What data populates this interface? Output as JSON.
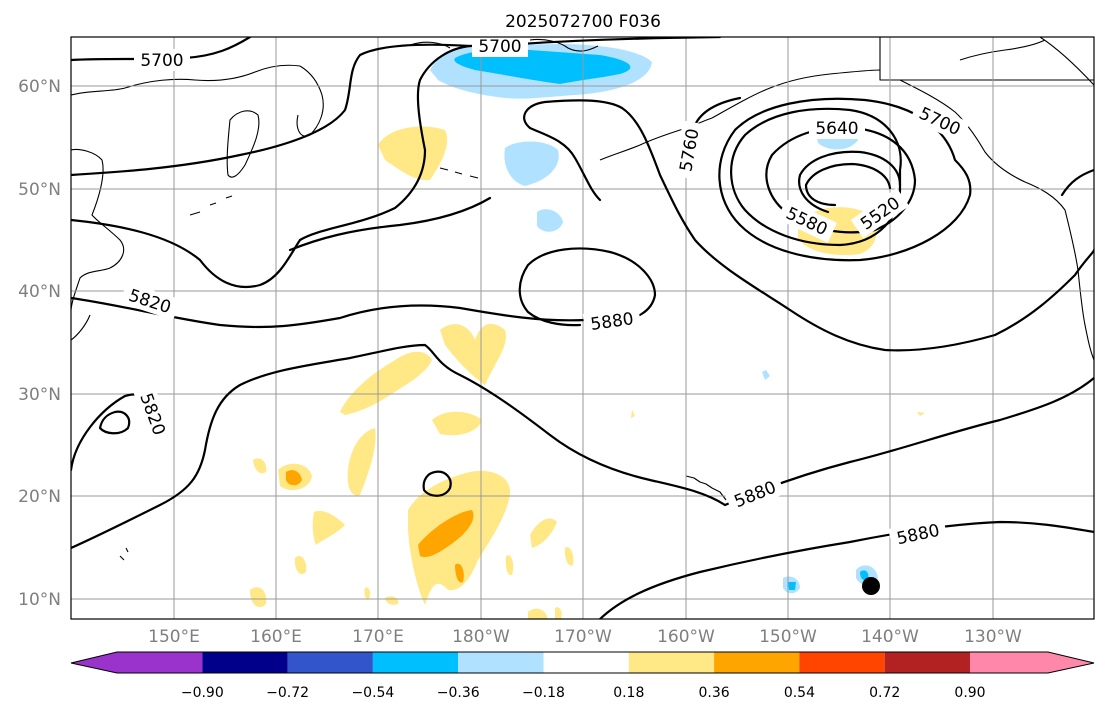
{
  "title": "2025072700 F036",
  "lat_labels": [
    "60°N",
    "50°N",
    "40°N",
    "30°N",
    "20°N",
    "10°N"
  ],
  "lon_labels": [
    "150°E",
    "160°E",
    "170°E",
    "180°W",
    "170°W",
    "160°W",
    "150°W",
    "140°W",
    "130°W"
  ],
  "contour_labels": [
    "5700",
    "5700",
    "5700",
    "5640",
    "5760",
    "5580",
    "5520",
    "5820",
    "5820",
    "5880",
    "5880",
    "5880"
  ],
  "colorbar": {
    "ticks": [
      "−0.90",
      "−0.72",
      "−0.54",
      "−0.36",
      "−0.18",
      "0.18",
      "0.36",
      "0.54",
      "0.72",
      "0.90"
    ],
    "colors": [
      "#9933cc",
      "#00008b",
      "#3355cc",
      "#00bfff",
      "#b0e2ff",
      "#ffffff",
      "#ffe885",
      "#ffa500",
      "#ff4500",
      "#b22222",
      "#ff88aa"
    ]
  },
  "marker_color": "#000000"
}
